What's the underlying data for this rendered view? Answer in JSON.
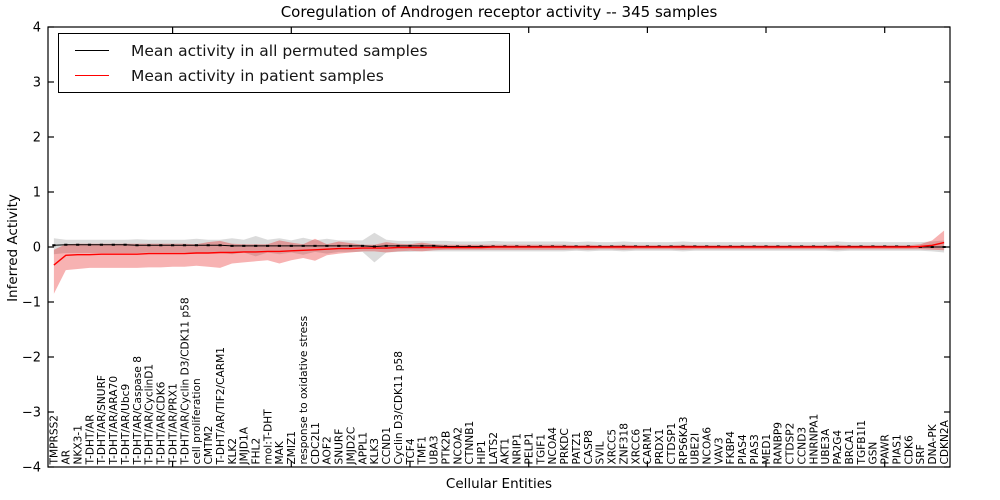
{
  "figure": {
    "title": "Coregulation of Androgen receptor activity -- 345 samples",
    "xlabel": "Cellular Entities",
    "ylabel": "Inferred Activity"
  },
  "legend": {
    "items": [
      {
        "label": "Mean activity in all permuted samples",
        "color": "#000000"
      },
      {
        "label": "Mean activity in patient samples",
        "color": "#ff0000"
      }
    ]
  },
  "chart_data": {
    "type": "line",
    "title": "Coregulation of Androgen receptor activity -- 345 samples",
    "xlabel": "Cellular Entities",
    "ylabel": "Inferred Activity",
    "ylim": [
      -4,
      4
    ],
    "yticks": [
      -4,
      -3,
      -2,
      -1,
      0,
      1,
      2,
      3,
      4
    ],
    "grid": false,
    "legend_position": "upper left",
    "categories": [
      "TMPRSS2",
      "AR",
      "NKX3-1",
      "T-DHT/AR",
      "T-DHT/AR/SNURF",
      "T-DHT/AR/ARA70",
      "T-DHT/AR/Ubc9",
      "T-DHT/AR/Caspase 8",
      "T-DHT/AR/CyclinD1",
      "T-DHT/AR/CDK6",
      "T-DHT/AR/PRX1",
      "T-DHT/AR/Cyclin D3/CDK11 p58",
      "cell proliferation",
      "CMTM2",
      "T-DHT/AR/TIF2/CARM1",
      "KLK2",
      "JMJD1A",
      "FHL2",
      "mol:T-DHT",
      "MAK",
      "ZMIZ1",
      "response to oxidative stress",
      "CDC2L1",
      "AOF2",
      "SNURF",
      "JMJD2C",
      "APPL1",
      "KLK3",
      "CCND1",
      "Cyclin D3/CDK11 p58",
      "TCF4",
      "TMF1",
      "UBA3",
      "PTK2B",
      "NCOA2",
      "CTNNB1",
      "HIP1",
      "LATS2",
      "AKT1",
      "NRIP1",
      "PELP1",
      "TGIF1",
      "NCOA4",
      "PRKDC",
      "PATZ1",
      "CASP8",
      "SVIL",
      "XRCC5",
      "ZNF318",
      "XRCC6",
      "CARM1",
      "PRDX1",
      "CTDSP1",
      "RPS6KA3",
      "UBE2I",
      "NCOA6",
      "VAV3",
      "FKBP4",
      "PIAS4",
      "PIAS3",
      "MED1",
      "RANBP9",
      "CTDSP2",
      "CCND3",
      "HNRNPA1",
      "UBE3A",
      "PA2G4",
      "BRCA1",
      "TGFB1I1",
      "GSN",
      "PAWR",
      "PIAS1",
      "CDK6",
      "SRF",
      "DNA-PK",
      "CDKN2A"
    ],
    "series": [
      {
        "name": "Mean activity in all permuted samples",
        "line_color": "#000000",
        "band_color": "#999999",
        "mean": [
          0.03,
          0.04,
          0.04,
          0.04,
          0.04,
          0.04,
          0.04,
          0.03,
          0.03,
          0.03,
          0.03,
          0.03,
          0.03,
          0.03,
          0.03,
          0.02,
          0.02,
          0.02,
          0.02,
          0.02,
          0.02,
          0.02,
          0.02,
          0.02,
          0.02,
          0.02,
          0.02,
          0.01,
          0.02,
          0.02,
          0.02,
          0.02,
          0.02,
          0.01,
          0.01,
          0.01,
          0.01,
          0.01,
          0.01,
          0.01,
          0.01,
          0.01,
          0.01,
          0.01,
          0.01,
          0.01,
          0.01,
          0.01,
          0.01,
          0.01,
          0.01,
          0.01,
          0.01,
          0.01,
          0.01,
          0.01,
          0.01,
          0.01,
          0.01,
          0.01,
          0.01,
          0.01,
          0.01,
          0.01,
          0.01,
          0.01,
          0.01,
          0.01,
          0.01,
          0.01,
          0.01,
          0.01,
          0.01,
          0.0,
          0.0,
          0.0
        ],
        "upper": [
          0.16,
          0.13,
          0.13,
          0.13,
          0.13,
          0.13,
          0.13,
          0.14,
          0.13,
          0.13,
          0.13,
          0.13,
          0.15,
          0.13,
          0.13,
          0.16,
          0.13,
          0.2,
          0.13,
          0.16,
          0.12,
          0.17,
          0.12,
          0.15,
          0.12,
          0.12,
          0.12,
          0.26,
          0.13,
          0.11,
          0.11,
          0.11,
          0.11,
          0.11,
          0.1,
          0.1,
          0.1,
          0.11,
          0.1,
          0.1,
          0.1,
          0.1,
          0.1,
          0.1,
          0.09,
          0.1,
          0.09,
          0.09,
          0.1,
          0.09,
          0.09,
          0.09,
          0.09,
          0.1,
          0.09,
          0.09,
          0.09,
          0.09,
          0.09,
          0.09,
          0.09,
          0.09,
          0.09,
          0.09,
          0.09,
          0.09,
          0.1,
          0.09,
          0.09,
          0.09,
          0.09,
          0.09,
          0.09,
          0.09,
          0.1,
          0.12
        ],
        "lower": [
          -0.13,
          -0.11,
          -0.11,
          -0.11,
          -0.11,
          -0.11,
          -0.11,
          -0.11,
          -0.1,
          -0.1,
          -0.1,
          -0.1,
          -0.12,
          -0.1,
          -0.1,
          -0.13,
          -0.1,
          -0.17,
          -0.1,
          -0.13,
          -0.1,
          -0.14,
          -0.09,
          -0.12,
          -0.09,
          -0.09,
          -0.09,
          -0.28,
          -0.1,
          -0.09,
          -0.09,
          -0.08,
          -0.08,
          -0.08,
          -0.08,
          -0.08,
          -0.08,
          -0.08,
          -0.08,
          -0.08,
          -0.08,
          -0.08,
          -0.08,
          -0.08,
          -0.07,
          -0.08,
          -0.07,
          -0.07,
          -0.08,
          -0.07,
          -0.07,
          -0.07,
          -0.07,
          -0.08,
          -0.07,
          -0.07,
          -0.07,
          -0.07,
          -0.07,
          -0.07,
          -0.07,
          -0.07,
          -0.07,
          -0.07,
          -0.07,
          -0.07,
          -0.08,
          -0.07,
          -0.07,
          -0.07,
          -0.07,
          -0.07,
          -0.07,
          -0.07,
          -0.08,
          -0.1
        ]
      },
      {
        "name": "Mean activity in patient samples",
        "line_color": "#ff0000",
        "band_color": "#e60000",
        "mean": [
          -0.33,
          -0.15,
          -0.14,
          -0.14,
          -0.13,
          -0.13,
          -0.13,
          -0.13,
          -0.12,
          -0.12,
          -0.12,
          -0.12,
          -0.11,
          -0.11,
          -0.1,
          -0.1,
          -0.09,
          -0.09,
          -0.08,
          -0.08,
          -0.07,
          -0.06,
          -0.05,
          -0.04,
          -0.03,
          -0.03,
          -0.02,
          -0.02,
          -0.02,
          -0.01,
          -0.01,
          -0.01,
          -0.01,
          -0.01,
          -0.01,
          -0.01,
          -0.01,
          0,
          0,
          0,
          0,
          0,
          0,
          0,
          0,
          0,
          0,
          0,
          0,
          0,
          0,
          0,
          0,
          0,
          0,
          0,
          0,
          0,
          0,
          0,
          0,
          0,
          0,
          0,
          0,
          0,
          0,
          0,
          0,
          0,
          0,
          0,
          0,
          0.01,
          0.03,
          0.08
        ],
        "upper": [
          -0.05,
          0.05,
          0.06,
          0.06,
          0.06,
          0.06,
          0.06,
          0.06,
          0.06,
          0.06,
          0.06,
          0.06,
          0.05,
          0.09,
          0.11,
          0.06,
          0.05,
          0.05,
          0.05,
          0.12,
          0.08,
          0.05,
          0.15,
          0.05,
          0.1,
          0.07,
          0.04,
          0.04,
          0.09,
          0.06,
          0.05,
          0.08,
          0.05,
          0.04,
          0.04,
          0.04,
          0.04,
          0.04,
          0.04,
          0.04,
          0.04,
          0.04,
          0.04,
          0.04,
          0.03,
          0.04,
          0.03,
          0.03,
          0.04,
          0.03,
          0.03,
          0.03,
          0.03,
          0.04,
          0.03,
          0.03,
          0.03,
          0.03,
          0.03,
          0.03,
          0.03,
          0.03,
          0.03,
          0.03,
          0.03,
          0.03,
          0.04,
          0.03,
          0.03,
          0.03,
          0.03,
          0.03,
          0.03,
          0.05,
          0.12,
          0.3
        ],
        "lower": [
          -0.85,
          -0.42,
          -0.4,
          -0.38,
          -0.38,
          -0.38,
          -0.38,
          -0.38,
          -0.37,
          -0.37,
          -0.36,
          -0.36,
          -0.34,
          -0.36,
          -0.38,
          -0.3,
          -0.28,
          -0.26,
          -0.24,
          -0.3,
          -0.24,
          -0.2,
          -0.25,
          -0.15,
          -0.12,
          -0.1,
          -0.08,
          -0.08,
          -0.1,
          -0.08,
          -0.07,
          -0.08,
          -0.06,
          -0.05,
          -0.05,
          -0.05,
          -0.05,
          -0.05,
          -0.05,
          -0.05,
          -0.05,
          -0.05,
          -0.05,
          -0.05,
          -0.04,
          -0.05,
          -0.04,
          -0.04,
          -0.05,
          -0.04,
          -0.04,
          -0.04,
          -0.04,
          -0.05,
          -0.04,
          -0.04,
          -0.04,
          -0.04,
          -0.04,
          -0.04,
          -0.04,
          -0.04,
          -0.04,
          -0.04,
          -0.04,
          -0.04,
          -0.05,
          -0.04,
          -0.04,
          -0.04,
          -0.04,
          -0.04,
          -0.04,
          -0.04,
          -0.05,
          -0.06
        ]
      }
    ]
  }
}
